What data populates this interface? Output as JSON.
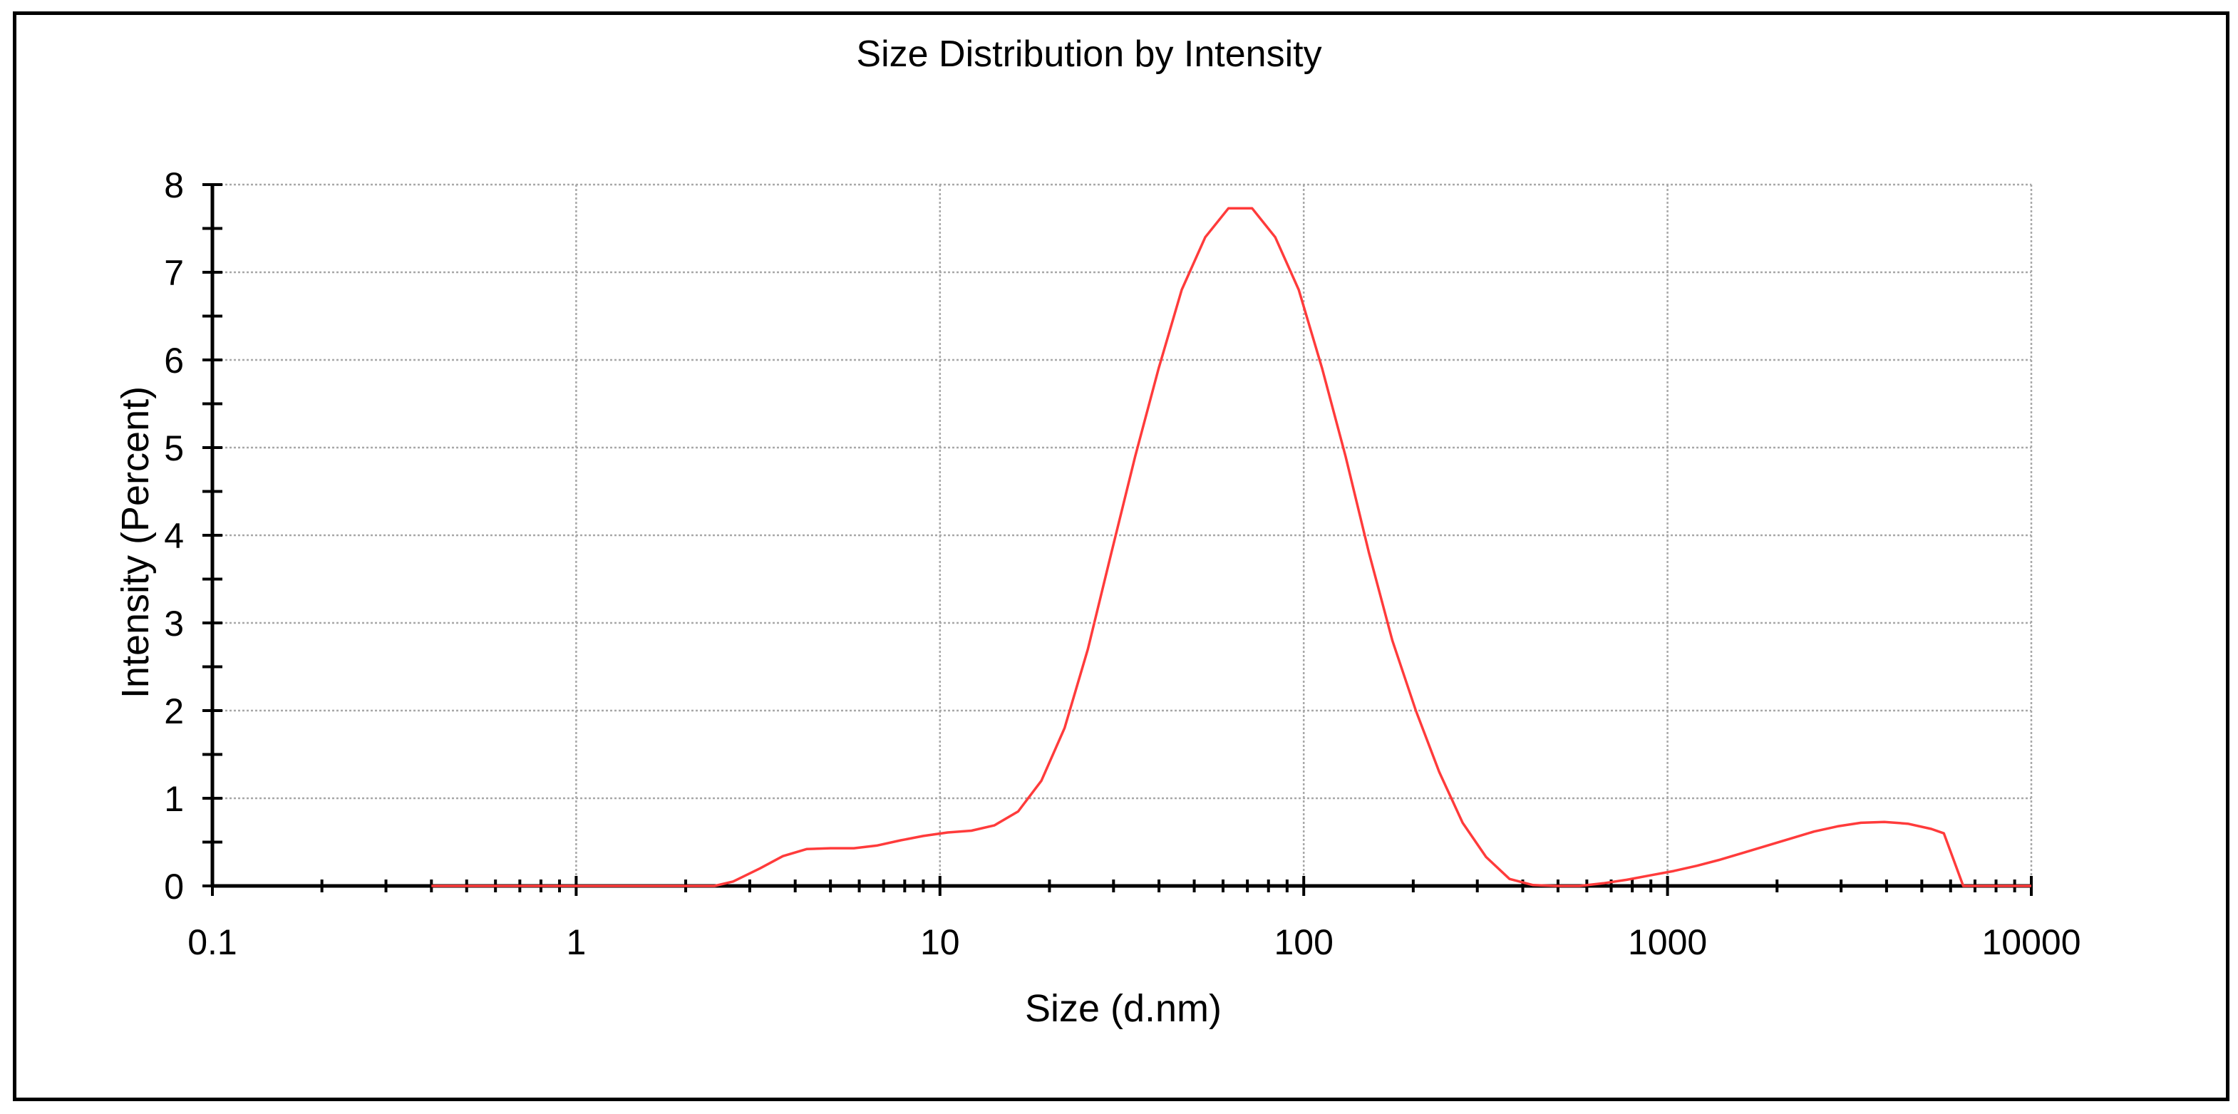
{
  "chart_data": {
    "type": "line",
    "title": "Size Distribution by Intensity",
    "xlabel": "Size (d.nm)",
    "ylabel": "Intensity (Percent)",
    "xscale": "log",
    "xlim": [
      0.1,
      10000
    ],
    "ylim": [
      0,
      8
    ],
    "xticks": [
      0.1,
      1,
      10,
      100,
      1000,
      10000
    ],
    "xtick_labels": [
      "0.1",
      "1",
      "10",
      "100",
      "1000",
      "10000"
    ],
    "yticks": [
      0,
      1,
      2,
      3,
      4,
      5,
      6,
      7,
      8
    ],
    "ytick_labels": [
      "0",
      "1",
      "2",
      "3",
      "4",
      "5",
      "6",
      "7",
      "8"
    ],
    "grid": true,
    "line_color": "#ff3b3b",
    "series": [
      {
        "x": [
          0.4,
          0.6,
          1.0,
          1.5,
          2.0,
          2.4,
          2.7,
          3.2,
          3.7,
          4.3,
          5.0,
          5.8,
          6.7,
          7.8,
          9.0,
          10.5,
          12.2,
          14.1,
          16.4,
          19.0,
          22.0,
          25.5,
          29.6,
          34.4,
          39.9,
          46.2,
          53.6,
          62.1,
          72.1,
          83.5,
          96.9,
          112.4,
          130.3,
          151.1,
          175.2,
          203.3,
          235.8,
          273.4,
          317.1,
          367.8,
          426.6,
          495.0,
          574.0,
          665.6,
          772.2,
          895.6,
          1039,
          1205,
          1397,
          1620,
          1879,
          2180,
          2528,
          2933,
          3400,
          3944,
          4575,
          5307,
          5750,
          6500,
          7000,
          10000
        ],
        "y": [
          0,
          0,
          0,
          0,
          0,
          0,
          0.05,
          0.2,
          0.34,
          0.42,
          0.43,
          0.43,
          0.46,
          0.52,
          0.57,
          0.61,
          0.63,
          0.69,
          0.85,
          1.2,
          1.8,
          2.7,
          3.8,
          4.9,
          5.9,
          6.8,
          7.4,
          7.73,
          7.73,
          7.4,
          6.8,
          5.9,
          4.9,
          3.8,
          2.8,
          2.0,
          1.3,
          0.72,
          0.33,
          0.08,
          0.01,
          0,
          0,
          0.03,
          0.07,
          0.12,
          0.17,
          0.23,
          0.3,
          0.38,
          0.46,
          0.54,
          0.62,
          0.68,
          0.72,
          0.73,
          0.71,
          0.65,
          0.6,
          0,
          0,
          0
        ]
      }
    ]
  }
}
